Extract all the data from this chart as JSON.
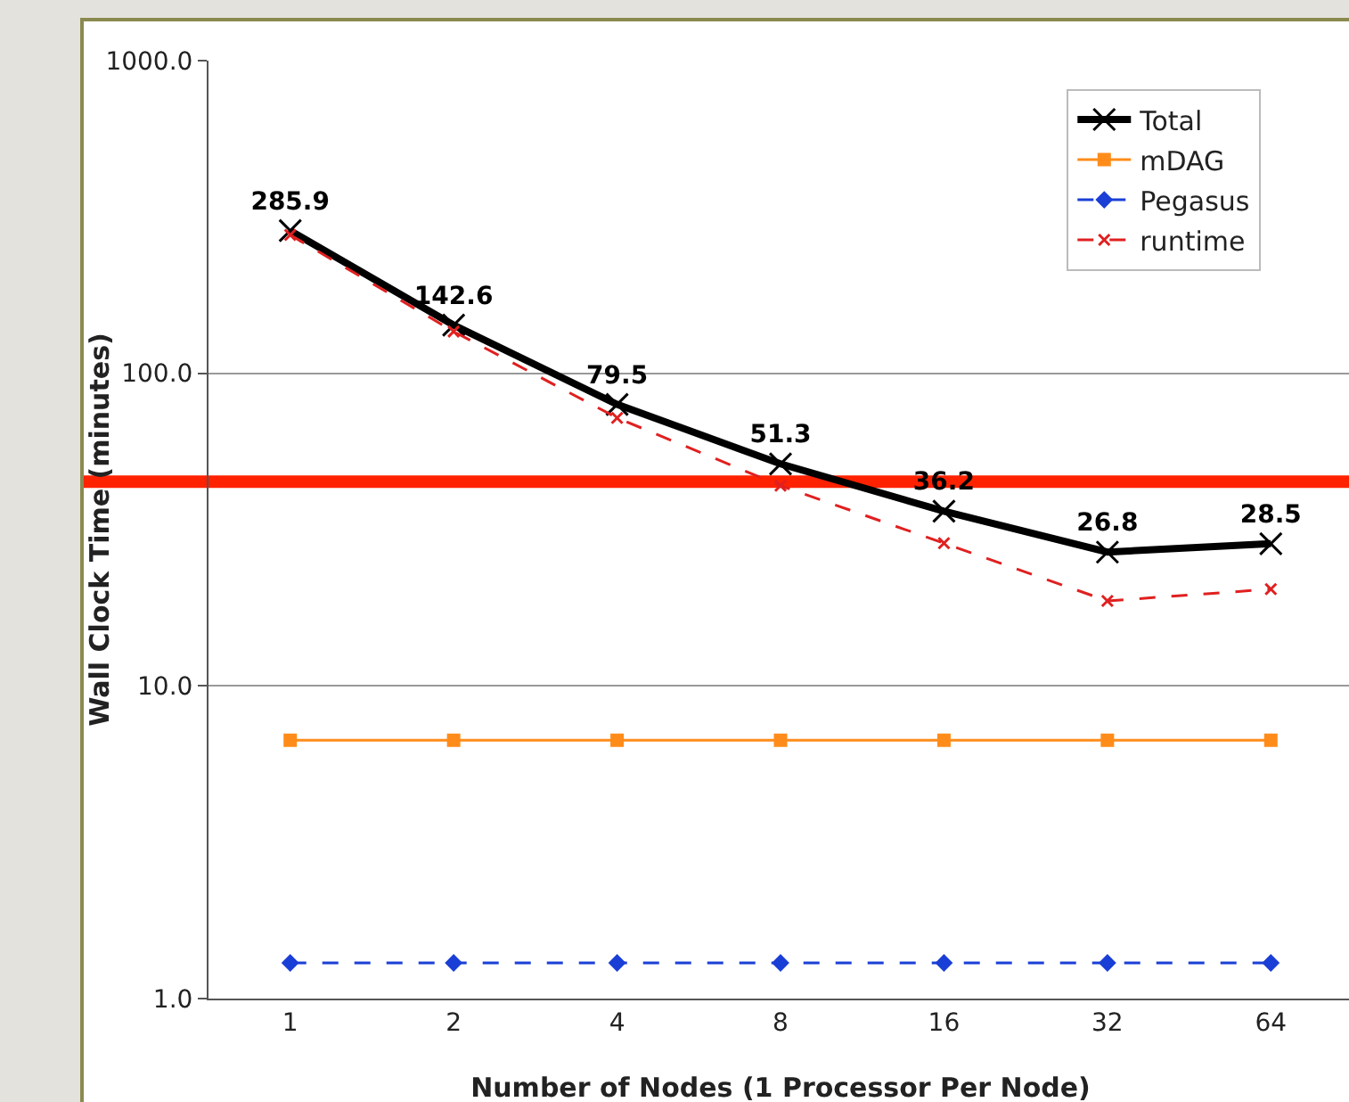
{
  "chart_data": {
    "type": "line",
    "xlabel": "Number of Nodes (1 Processor Per Node)",
    "ylabel": "Wall Clock Time (minutes)",
    "categories": [
      "1",
      "2",
      "4",
      "8",
      "16",
      "32",
      "64"
    ],
    "log": true,
    "ylim": [
      1,
      1000
    ],
    "yticks": [
      {
        "value": 1,
        "label": "1.0"
      },
      {
        "value": 10,
        "label": "10.0"
      },
      {
        "value": 100,
        "label": "100.0"
      },
      {
        "value": 1000,
        "label": "1000.0"
      }
    ],
    "grid": "y",
    "legend": "top right",
    "series": [
      {
        "name": "Total",
        "color": "#000000",
        "marker": "cross",
        "line_style": "solid",
        "values": [
          285.9,
          142.6,
          79.5,
          51.3,
          36.2,
          26.8,
          28.5
        ],
        "value_labels": [
          "285.9",
          "142.6",
          "79.5",
          "51.3",
          "36.2",
          "26.8",
          "28.5"
        ]
      },
      {
        "name": "mDAG",
        "color": "#ff8c1a",
        "marker": "square",
        "line_style": "solid",
        "values": [
          6.7,
          6.7,
          6.7,
          6.7,
          6.7,
          6.7,
          6.7
        ]
      },
      {
        "name": "Pegasus",
        "color": "#1a3fd6",
        "marker": "diamond",
        "line_style": "dashed",
        "values": [
          1.3,
          1.3,
          1.3,
          1.3,
          1.3,
          1.3,
          1.3
        ]
      },
      {
        "name": "runtime",
        "color": "#e02020",
        "marker": "cross",
        "line_style": "dashed",
        "values": [
          277,
          136,
          72,
          43.7,
          28.6,
          18.7,
          20.4
        ]
      }
    ],
    "ref_lines": [
      {
        "axis": "y",
        "value": 45,
        "color": "#ff2200"
      }
    ]
  }
}
